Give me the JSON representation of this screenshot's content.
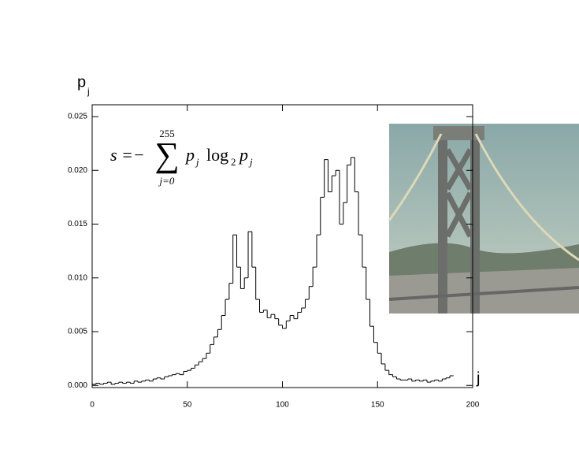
{
  "chart_data": {
    "type": "step",
    "ylabel": "p",
    "ylabel_sub": "j",
    "xlabel": "j",
    "formula": {
      "lhs": "s =−",
      "sigma": "∑",
      "upper": "255",
      "lower": "j=0",
      "p1": "p",
      "p1sub": "j",
      "log": "log",
      "logsub": "2",
      "p2": "p",
      "p2sub": "j"
    },
    "x": [
      0,
      2,
      4,
      6,
      8,
      10,
      12,
      14,
      16,
      18,
      20,
      22,
      24,
      26,
      28,
      30,
      32,
      34,
      36,
      38,
      40,
      42,
      44,
      46,
      48,
      50,
      52,
      54,
      56,
      58,
      60,
      62,
      64,
      66,
      68,
      70,
      72,
      74,
      76,
      78,
      80,
      82,
      84,
      86,
      88,
      90,
      92,
      94,
      96,
      98,
      100,
      102,
      104,
      106,
      108,
      110,
      112,
      114,
      116,
      118,
      120,
      122,
      124,
      126,
      128,
      130,
      132,
      134,
      136,
      138,
      140,
      142,
      144,
      146,
      148,
      150,
      152,
      154,
      156,
      158,
      160,
      162,
      164,
      166,
      168,
      170,
      172,
      174,
      176,
      178,
      180,
      182,
      184,
      186,
      188
    ],
    "values": [
      0.0001,
      0.0002,
      0.0001,
      0.0002,
      0.0003,
      0.0001,
      0.0002,
      0.0003,
      0.0002,
      0.0003,
      0.0002,
      0.0004,
      0.0003,
      0.0004,
      0.0005,
      0.0004,
      0.0006,
      0.0007,
      0.0006,
      0.0008,
      0.0009,
      0.001,
      0.0011,
      0.001,
      0.0013,
      0.0014,
      0.0016,
      0.0019,
      0.0022,
      0.0025,
      0.003,
      0.0038,
      0.0045,
      0.0052,
      0.0065,
      0.008,
      0.0095,
      0.014,
      0.011,
      0.009,
      0.01,
      0.0143,
      0.011,
      0.008,
      0.0068,
      0.007,
      0.0063,
      0.0066,
      0.0062,
      0.0056,
      0.0053,
      0.006,
      0.0065,
      0.0062,
      0.0068,
      0.0072,
      0.008,
      0.0092,
      0.011,
      0.014,
      0.0175,
      0.021,
      0.018,
      0.0195,
      0.02,
      0.015,
      0.017,
      0.0205,
      0.0212,
      0.018,
      0.014,
      0.011,
      0.008,
      0.0055,
      0.004,
      0.003,
      0.002,
      0.0014,
      0.001,
      0.0008,
      0.0006,
      0.0005,
      0.0005,
      0.0006,
      0.0004,
      0.0005,
      0.0004,
      0.0005,
      0.0003,
      0.0004,
      0.0005,
      0.0004,
      0.0006,
      0.0007,
      0.0009
    ],
    "color": "#000000",
    "xlim": [
      0,
      200
    ],
    "xticks": [
      0,
      50,
      100,
      150,
      200
    ],
    "ylim": [
      -0.0002,
      0.0261
    ],
    "yticks": [
      {
        "value": 0,
        "label": "0.000"
      },
      {
        "value": 0.005,
        "label": "0.005"
      },
      {
        "value": 0.01,
        "label": "0.010"
      },
      {
        "value": 0.015,
        "label": "0.015"
      },
      {
        "value": 0.02,
        "label": "0.020"
      },
      {
        "value": 0.025,
        "label": "0.025"
      }
    ]
  }
}
